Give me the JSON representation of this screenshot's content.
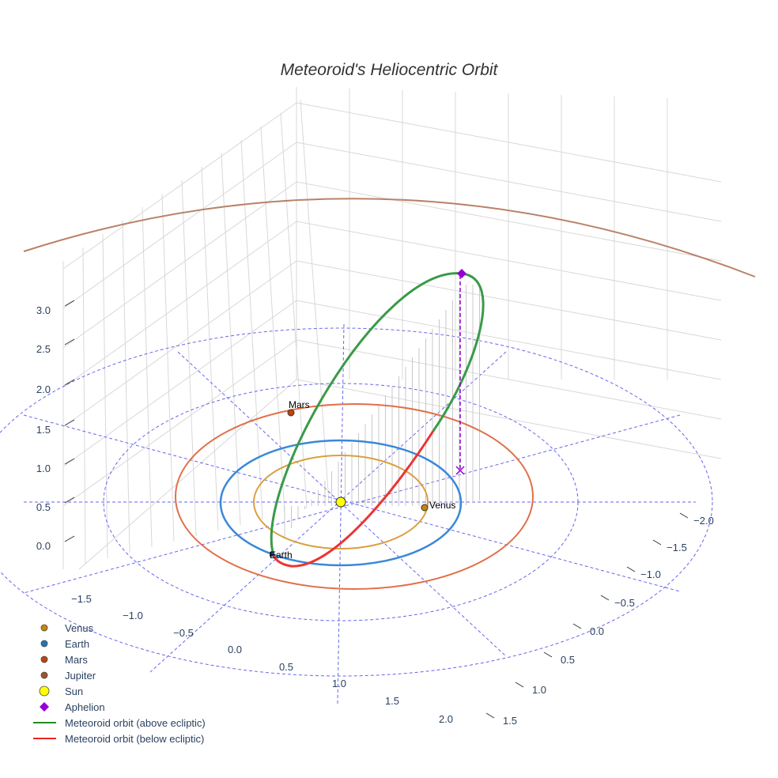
{
  "chart_data": {
    "type": "scatter3d",
    "title": "Meteoroid's Heliocentric Orbit",
    "z_ticks": [
      "0.0",
      "0.5",
      "1.0",
      "1.5",
      "2.0",
      "2.5",
      "3.0"
    ],
    "x_ticks": [
      "−1.5",
      "−1.0",
      "−0.5",
      "0.0",
      "0.5",
      "1.0",
      "1.5",
      "2.0"
    ],
    "y_ticks": [
      "−2.0",
      "−1.5",
      "−1.0",
      "−0.5",
      "0.0",
      "0.5",
      "1.0",
      "1.5"
    ],
    "planet_labels": {
      "mars": "Mars",
      "venus": "Venus",
      "earth": "Earth"
    },
    "orbit_radii_au": {
      "venus": 0.72,
      "earth": 1.0,
      "mars": 1.52,
      "jupiter": 5.2
    },
    "aphelion_z": 3.3,
    "legend": [
      {
        "label": "Venus",
        "color": "#c8860a",
        "symbol": "circle"
      },
      {
        "label": "Earth",
        "color": "#1f77b4",
        "symbol": "circle"
      },
      {
        "label": "Mars",
        "color": "#c1440e",
        "symbol": "circle"
      },
      {
        "label": "Jupiter",
        "color": "#a0522d",
        "symbol": "circle"
      },
      {
        "label": "Sun",
        "color": "#ffff00",
        "symbol": "circle"
      },
      {
        "label": "Aphelion",
        "color": "#9400d3",
        "symbol": "diamond"
      },
      {
        "label": "Meteoroid orbit (above ecliptic)",
        "color": "#228b22",
        "symbol": "line"
      },
      {
        "label": "Meteoroid orbit (below ecliptic)",
        "color": "#ee2222",
        "symbol": "line"
      }
    ]
  }
}
